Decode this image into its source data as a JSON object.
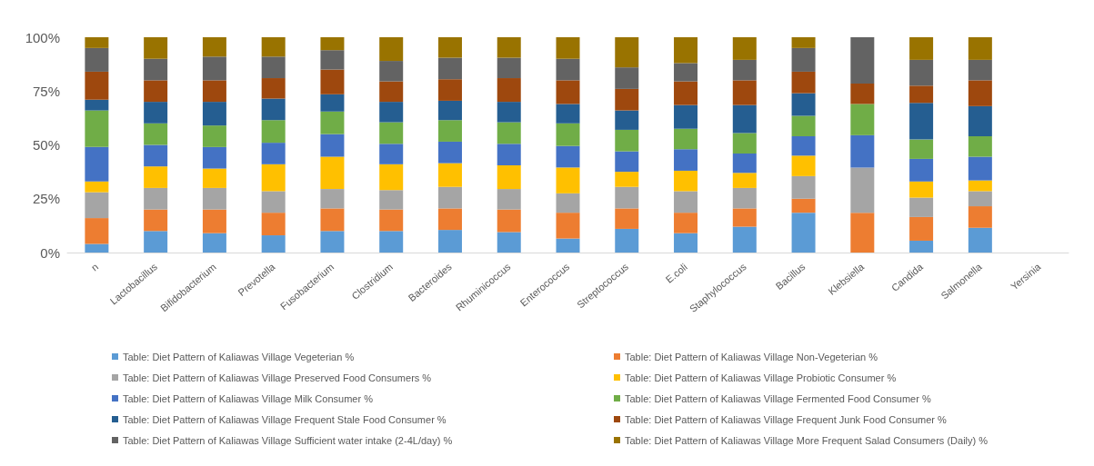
{
  "chart_data": {
    "type": "bar",
    "stacked": true,
    "grid": false,
    "legend": "bottom",
    "categories": [
      "n",
      "Lactobacillus",
      "Bifidobacterium",
      "Prevotella",
      "Fusobacterium",
      "Clostridium",
      "Bacteroides",
      "Rhuminicoccus",
      "Enterococcus",
      "Streptococcus",
      "E.coli",
      "Staphylococcus",
      "Bacillus",
      "Klebsiella",
      "Candida",
      "Salmonella",
      "Yersinia"
    ],
    "ylim": [
      0,
      100
    ],
    "yticks": [
      {
        "value": 0,
        "label": "0%"
      },
      {
        "value": 25,
        "label": "25%"
      },
      {
        "value": 50,
        "label": "50%"
      },
      {
        "value": 75,
        "label": "75%"
      },
      {
        "value": 100,
        "label": "100%"
      }
    ],
    "series": [
      {
        "name": "Table: Diet Pattern of Kaliawas Village Vegeterian %",
        "color": "#5b9bd5",
        "values": [
          4,
          10,
          9,
          8,
          10,
          10,
          10.5,
          9.5,
          6.5,
          11,
          9,
          12,
          18.5,
          0,
          5.5,
          11.5,
          null
        ]
      },
      {
        "name": "Table: Diet Pattern of Kaliawas Village Non-Vegeterian %",
        "color": "#ed7d31",
        "values": [
          12,
          10,
          11,
          10.5,
          10.5,
          10,
          10,
          10.5,
          12,
          9.5,
          9.5,
          8.5,
          6.5,
          18.5,
          11,
          10,
          null
        ]
      },
      {
        "name": "Table: Diet Pattern of Kaliawas Village Preserved Food Consumers %",
        "color": "#a5a5a5",
        "values": [
          12,
          10,
          10,
          10,
          9,
          9,
          10,
          9.5,
          9,
          10,
          10,
          9.5,
          10.5,
          21,
          9,
          7,
          null
        ]
      },
      {
        "name": "Table: Diet Pattern of Kaliawas Village Probiotic Consumer %",
        "color": "#ffc000",
        "values": [
          5,
          10,
          9,
          12.5,
          15,
          12,
          11,
          11,
          12,
          7,
          9.5,
          7,
          9.5,
          0,
          7.5,
          5,
          null
        ]
      },
      {
        "name": "Table: Diet Pattern of Kaliawas Village Milk Consumer %",
        "color": "#4472c4",
        "values": [
          16,
          10,
          10,
          10,
          10.5,
          9.5,
          10,
          10,
          10,
          9.5,
          10,
          9,
          9,
          15,
          10.5,
          11,
          null
        ]
      },
      {
        "name": "Table: Diet Pattern of Kaliawas Village Fermented Food Consumer %",
        "color": "#70ad47",
        "values": [
          17,
          10,
          10,
          10.5,
          10.5,
          10,
          10,
          10,
          10.5,
          10,
          9.5,
          9.5,
          9.5,
          14.5,
          9,
          9.5,
          null
        ]
      },
      {
        "name": "Table: Diet Pattern of Kaliawas Village Frequent Stale Food Consumer %",
        "color": "#255e91",
        "values": [
          5,
          10,
          11,
          10,
          8,
          9.5,
          9,
          9.5,
          9,
          9,
          11,
          13,
          10.5,
          0,
          17,
          14,
          null
        ]
      },
      {
        "name": "Table: Diet Pattern of Kaliawas Village Frequent Junk Food Consumer %",
        "color": "#9e480e",
        "values": [
          13,
          10,
          10,
          9.5,
          11.5,
          9.5,
          10,
          11,
          11,
          10,
          11,
          11.5,
          10,
          9.5,
          8,
          12,
          null
        ]
      },
      {
        "name": "Table: Diet Pattern of Kaliawas Village Sufficient water intake (2-4L/day) %",
        "color": "#636363",
        "values": [
          11,
          10,
          11,
          10,
          9,
          9.5,
          10,
          9.5,
          10,
          10,
          8.5,
          9.5,
          11,
          21.5,
          12,
          9.5,
          null
        ]
      },
      {
        "name": "Table: Diet Pattern of Kaliawas Village More Frequent Salad Consumers (Daily) %",
        "color": "#997300",
        "values": [
          5,
          10,
          9,
          9,
          6,
          11,
          9.5,
          9.5,
          10,
          14,
          12,
          10.5,
          5,
          0,
          10.5,
          10.5,
          null
        ]
      }
    ]
  }
}
